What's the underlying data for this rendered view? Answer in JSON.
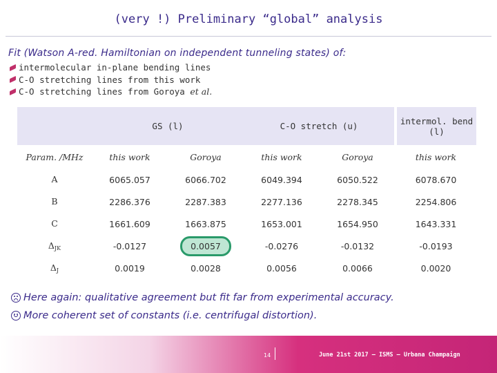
{
  "title": "(very !) Preliminary “global” analysis",
  "subtitle": "Fit (Watson A-red. Hamiltonian on independent tunneling states) of:",
  "bullets": [
    {
      "text": "intermolecular in-plane bending lines",
      "suffix": ""
    },
    {
      "text": "C-O stretching lines from this work",
      "suffix": ""
    },
    {
      "text": "C-O stretching lines from Goroya ",
      "suffix": "et al."
    }
  ],
  "table": {
    "group_headers": [
      "GS (l)",
      "C-O stretch (u)",
      "intermol. bend (l)"
    ],
    "sub_headers": [
      "Param. /MHz",
      "this work",
      "Goroya",
      "this work",
      "Goroya",
      "this work"
    ],
    "rows": [
      {
        "param": "A",
        "sub": "",
        "values": [
          "6065.057",
          "6066.702",
          "6049.394",
          "6050.522",
          "6078.670"
        ]
      },
      {
        "param": "B",
        "sub": "",
        "values": [
          "2286.376",
          "2287.383",
          "2277.136",
          "2278.345",
          "2254.806"
        ]
      },
      {
        "param": "C",
        "sub": "",
        "values": [
          "1661.609",
          "1663.875",
          "1653.001",
          "1654.950",
          "1643.331"
        ]
      },
      {
        "param": "Δ",
        "sub": "JK",
        "values": [
          "-0.0127",
          "0.0057",
          "-0.0276",
          "-0.0132",
          "-0.0193"
        ]
      },
      {
        "param": "Δ",
        "sub": "J",
        "values": [
          "0.0019",
          "0.0028",
          "0.0056",
          "0.0066",
          "0.0020"
        ]
      }
    ]
  },
  "remarks": {
    "sad": "Here again: qualitative agreement but fit far from experimental accuracy.",
    "happy": "More coherent set of constants (i.e. centrifugal distortion)."
  },
  "footer": {
    "page_number": "14",
    "text": "June 21st 2017 – ISMS – Urbana Champaign"
  },
  "colors": {
    "accent": "#3a2a8a",
    "header_bg": "#e6e4f4",
    "highlight": "#2a9a6a",
    "footer": "#c42577"
  }
}
